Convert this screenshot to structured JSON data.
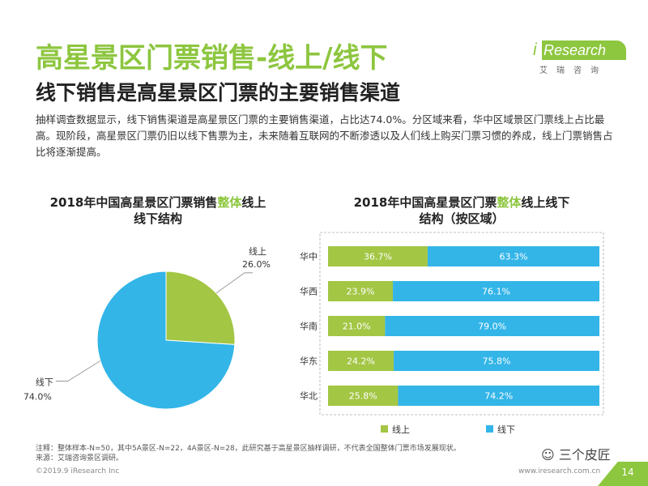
{
  "title": "高星景区门票销售-线上/线下",
  "subtitle": "线下销售是高星景区门票的主要销售渠道",
  "description": "抽样调查数据显示，线下销售渠道是高星景区门票的主要销售渠道，占比达74.0%。分区域来看，华中区域景区门票线上占比最高。现阶段，高星景区门票仍旧以线下售票为主，未来随着互联网的不断渗透以及人们线上购买门票习惯的养成，线上门票销售占比将逐渐提高。",
  "logo": {
    "i": "i",
    "name": "Research",
    "sub": "艾瑞咨询"
  },
  "colors": {
    "online": "#a3c644",
    "offline": "#33b5e8",
    "accent": "#8dc63f"
  },
  "chart_data": [
    {
      "type": "pie",
      "title_parts": [
        "2018年中国高星景区门票销售",
        "整体",
        "线上"
      ],
      "title_line2": "线下结构",
      "slices": [
        {
          "name": "线上",
          "value": 26.0,
          "label": "26.0%"
        },
        {
          "name": "线下",
          "value": 74.0,
          "label": "74.0%"
        }
      ]
    },
    {
      "type": "bar",
      "stacked": true,
      "orientation": "horizontal",
      "title_parts": [
        "2018年中国高星景区门票",
        "整体",
        "线上线下"
      ],
      "title_line2": "结构（按区域）",
      "categories": [
        "华中",
        "华西",
        "华南",
        "华东",
        "华北"
      ],
      "series": [
        {
          "name": "线上",
          "values": [
            36.7,
            23.9,
            21.0,
            24.2,
            25.8
          ]
        },
        {
          "name": "线下",
          "values": [
            63.3,
            76.1,
            79.0,
            75.8,
            74.2
          ]
        }
      ],
      "xlim": [
        0,
        100
      ]
    }
  ],
  "notes": [
    "注释：整体样本-N=50，其中5A景区-N=22，4A景区-N=28，此研究基于高星景区抽样调研，不代表全国整体门票市场发展现状。",
    "来源：艾瑞咨询景区调研。"
  ],
  "copyright": "©2019.9 iResearch Inc",
  "website": "www.iresearch.com.cn",
  "watermark": "三个皮匠",
  "page_number": "14"
}
